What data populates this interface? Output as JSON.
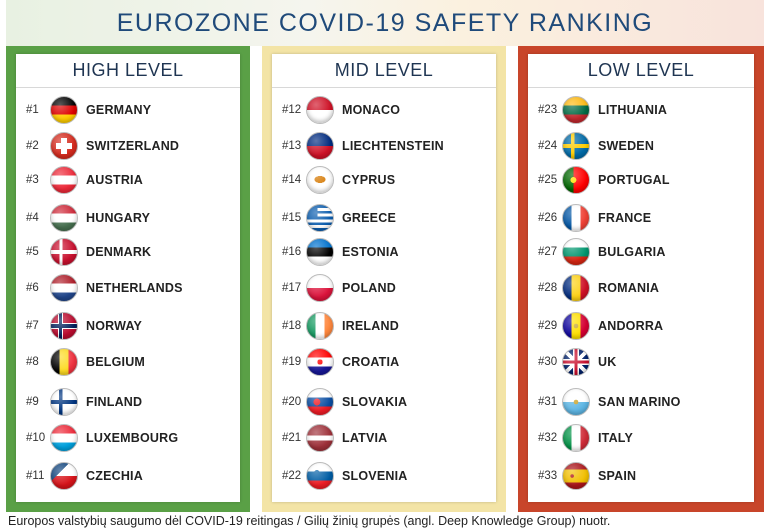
{
  "title": "EUROZONE COVID-19 SAFETY RANKING",
  "caption": "Europos valstybių saugumo dėl COVID-19 reitingas / Gilių žinių grupės (angl. Deep Knowledge Group) nuotr.",
  "columns": [
    {
      "title": "HIGH LEVEL",
      "color": "#5aa046",
      "items": [
        {
          "rank": "#1",
          "name": "GERMANY",
          "flag": "germany-flag"
        },
        {
          "rank": "#2",
          "name": "SWITZERLAND",
          "flag": "switzerland-flag"
        },
        {
          "rank": "#3",
          "name": "AUSTRIA",
          "flag": "austria-flag"
        },
        {
          "rank": "#4",
          "name": "HUNGARY",
          "flag": "hungary-flag"
        },
        {
          "rank": "#5",
          "name": "DENMARK",
          "flag": "denmark-flag"
        },
        {
          "rank": "#6",
          "name": "NETHERLANDS",
          "flag": "netherlands-flag"
        },
        {
          "rank": "#7",
          "name": "NORWAY",
          "flag": "norway-flag"
        },
        {
          "rank": "#8",
          "name": "BELGIUM",
          "flag": "belgium-flag"
        },
        {
          "rank": "#9",
          "name": "FINLAND",
          "flag": "finland-flag"
        },
        {
          "rank": "#10",
          "name": "LUXEMBOURG",
          "flag": "luxembourg-flag"
        },
        {
          "rank": "#11",
          "name": "CZECHIA",
          "flag": "czechia-flag"
        }
      ]
    },
    {
      "title": "MID LEVEL",
      "color": "#f3e4a6",
      "items": [
        {
          "rank": "#12",
          "name": "MONACO",
          "flag": "monaco-flag"
        },
        {
          "rank": "#13",
          "name": "LIECHTENSTEIN",
          "flag": "liechtenstein-flag"
        },
        {
          "rank": "#14",
          "name": "CYPRUS",
          "flag": "cyprus-flag"
        },
        {
          "rank": "#15",
          "name": "GREECE",
          "flag": "greece-flag"
        },
        {
          "rank": "#16",
          "name": "ESTONIA",
          "flag": "estonia-flag"
        },
        {
          "rank": "#17",
          "name": "POLAND",
          "flag": "poland-flag"
        },
        {
          "rank": "#18",
          "name": "IRELAND",
          "flag": "ireland-flag"
        },
        {
          "rank": "#19",
          "name": "CROATIA",
          "flag": "croatia-flag"
        },
        {
          "rank": "#20",
          "name": "SLOVAKIA",
          "flag": "slovakia-flag"
        },
        {
          "rank": "#21",
          "name": "LATVIA",
          "flag": "latvia-flag"
        },
        {
          "rank": "#22",
          "name": "SLOVENIA",
          "flag": "slovenia-flag"
        }
      ]
    },
    {
      "title": "LOW LEVEL",
      "color": "#c8452a",
      "items": [
        {
          "rank": "#23",
          "name": "LITHUANIA",
          "flag": "lithuania-flag"
        },
        {
          "rank": "#24",
          "name": "SWEDEN",
          "flag": "sweden-flag"
        },
        {
          "rank": "#25",
          "name": "PORTUGAL",
          "flag": "portugal-flag"
        },
        {
          "rank": "#26",
          "name": "FRANCE",
          "flag": "france-flag"
        },
        {
          "rank": "#27",
          "name": "BULGARIA",
          "flag": "bulgaria-flag"
        },
        {
          "rank": "#28",
          "name": "ROMANIA",
          "flag": "romania-flag"
        },
        {
          "rank": "#29",
          "name": "ANDORRA",
          "flag": "andorra-flag"
        },
        {
          "rank": "#30",
          "name": "UK",
          "flag": "uk-flag"
        },
        {
          "rank": "#31",
          "name": "SAN MARINO",
          "flag": "san-marino-flag"
        },
        {
          "rank": "#32",
          "name": "ITALY",
          "flag": "italy-flag"
        },
        {
          "rank": "#33",
          "name": "SPAIN",
          "flag": "spain-flag"
        }
      ]
    }
  ]
}
